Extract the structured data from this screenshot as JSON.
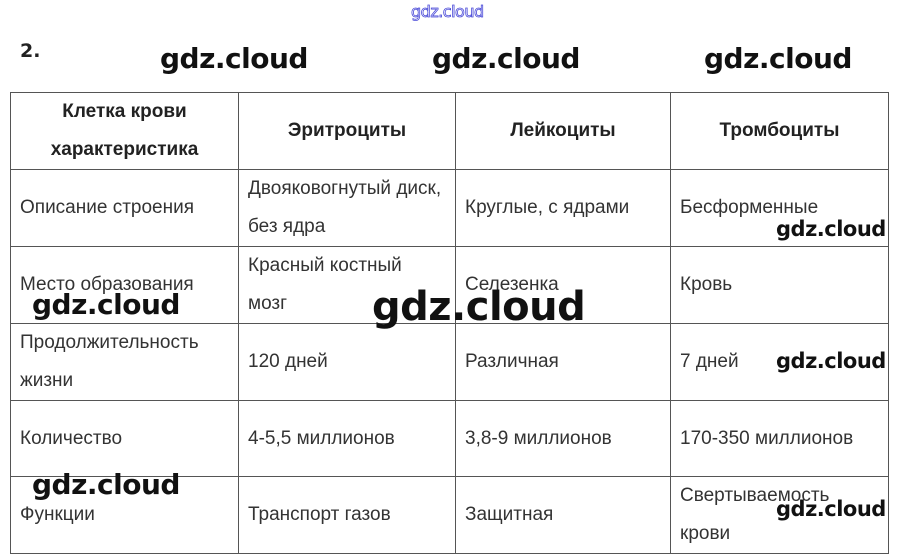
{
  "watermark_top": "gdz.cloud",
  "task_number": "2.",
  "watermark": "gdz.cloud",
  "table": {
    "headers": [
      "Клетка крови характеристика",
      "Эритроциты",
      "Лейкоциты",
      "Тромбоциты"
    ],
    "rows": [
      [
        "Описание строения",
        "Двояковогнутый диск, без ядра",
        "Круглые, с ядрами",
        "Бесформенные"
      ],
      [
        "Место образования",
        "Красный костный мозг",
        "Селезенка",
        "Кровь"
      ],
      [
        "Продолжительность жизни",
        "120 дней",
        "Различная",
        "7 дней"
      ],
      [
        "Количество",
        "4-5,5 миллионов",
        "3,8-9 миллионов",
        "170-350 миллионов"
      ],
      [
        "Функции",
        "Транспорт газов",
        "Защитная",
        "Свертываемость крови"
      ]
    ]
  }
}
